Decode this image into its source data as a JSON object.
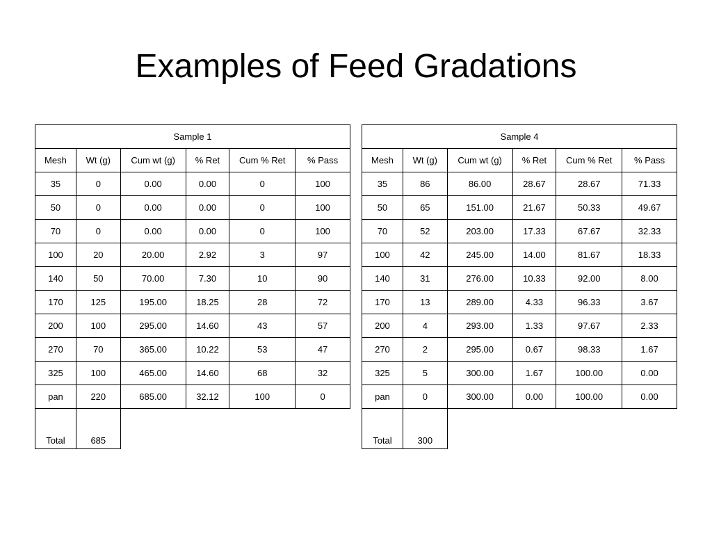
{
  "title": "Examples of Feed Gradations",
  "tables": [
    {
      "caption": "Sample 1",
      "headers": [
        "Mesh",
        "Wt (g)",
        "Cum wt (g)",
        "% Ret",
        "Cum % Ret",
        "% Pass"
      ],
      "rows": [
        [
          "35",
          "0",
          "0.00",
          "0.00",
          "0",
          "100"
        ],
        [
          "50",
          "0",
          "0.00",
          "0.00",
          "0",
          "100"
        ],
        [
          "70",
          "0",
          "0.00",
          "0.00",
          "0",
          "100"
        ],
        [
          "100",
          "20",
          "20.00",
          "2.92",
          "3",
          "97"
        ],
        [
          "140",
          "50",
          "70.00",
          "7.30",
          "10",
          "90"
        ],
        [
          "170",
          "125",
          "195.00",
          "18.25",
          "28",
          "72"
        ],
        [
          "200",
          "100",
          "295.00",
          "14.60",
          "43",
          "57"
        ],
        [
          "270",
          "70",
          "365.00",
          "10.22",
          "53",
          "47"
        ],
        [
          "325",
          "100",
          "465.00",
          "14.60",
          "68",
          "32"
        ],
        [
          "pan",
          "220",
          "685.00",
          "32.12",
          "100",
          "0"
        ]
      ],
      "total_label": "Total",
      "total_value": "685"
    },
    {
      "caption": "Sample 4",
      "headers": [
        "Mesh",
        "Wt (g)",
        "Cum wt (g)",
        "% Ret",
        "Cum % Ret",
        "% Pass"
      ],
      "rows": [
        [
          "35",
          "86",
          "86.00",
          "28.67",
          "28.67",
          "71.33"
        ],
        [
          "50",
          "65",
          "151.00",
          "21.67",
          "50.33",
          "49.67"
        ],
        [
          "70",
          "52",
          "203.00",
          "17.33",
          "67.67",
          "32.33"
        ],
        [
          "100",
          "42",
          "245.00",
          "14.00",
          "81.67",
          "18.33"
        ],
        [
          "140",
          "31",
          "276.00",
          "10.33",
          "92.00",
          "8.00"
        ],
        [
          "170",
          "13",
          "289.00",
          "4.33",
          "96.33",
          "3.67"
        ],
        [
          "200",
          "4",
          "293.00",
          "1.33",
          "97.67",
          "2.33"
        ],
        [
          "270",
          "2",
          "295.00",
          "0.67",
          "98.33",
          "1.67"
        ],
        [
          "325",
          "5",
          "300.00",
          "1.67",
          "100.00",
          "0.00"
        ],
        [
          "pan",
          "0",
          "300.00",
          "0.00",
          "100.00",
          "0.00"
        ]
      ],
      "total_label": "Total",
      "total_value": "300"
    }
  ]
}
